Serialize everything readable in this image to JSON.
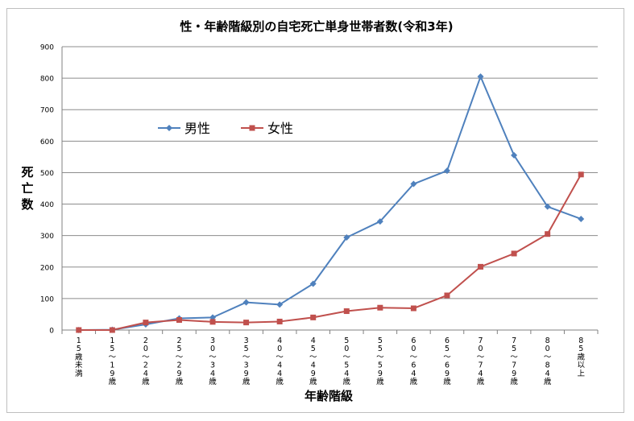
{
  "chart_data": {
    "type": "line",
    "title": "性・年齢階級別の自宅死亡単身世帯者数(令和3年)",
    "xlabel": "年齢階級",
    "ylabel": "死亡数",
    "ylim": [
      0,
      900
    ],
    "yticks": [
      0,
      100,
      200,
      300,
      400,
      500,
      600,
      700,
      800,
      900
    ],
    "grid": true,
    "legend_position": "upper-left",
    "categories": [
      "15歳未満",
      "15〜19歳",
      "20〜24歳",
      "25〜29歳",
      "30〜34歳",
      "35〜39歳",
      "40〜44歳",
      "45〜49歳",
      "50〜54歳",
      "55〜59歳",
      "60〜64歳",
      "65〜69歳",
      "70〜74歳",
      "75〜79歳",
      "80〜84歳",
      "85歳以上"
    ],
    "series": [
      {
        "name": "男性",
        "color": "#4f81bd",
        "marker": "diamond",
        "values": [
          0,
          1,
          18,
          37,
          40,
          88,
          81,
          147,
          294,
          345,
          464,
          506,
          805,
          555,
          392,
          353
        ]
      },
      {
        "name": "女性",
        "color": "#c0504d",
        "marker": "square",
        "values": [
          0,
          0,
          24,
          32,
          26,
          24,
          27,
          40,
          60,
          71,
          69,
          110,
          201,
          243,
          305,
          494
        ]
      }
    ]
  }
}
